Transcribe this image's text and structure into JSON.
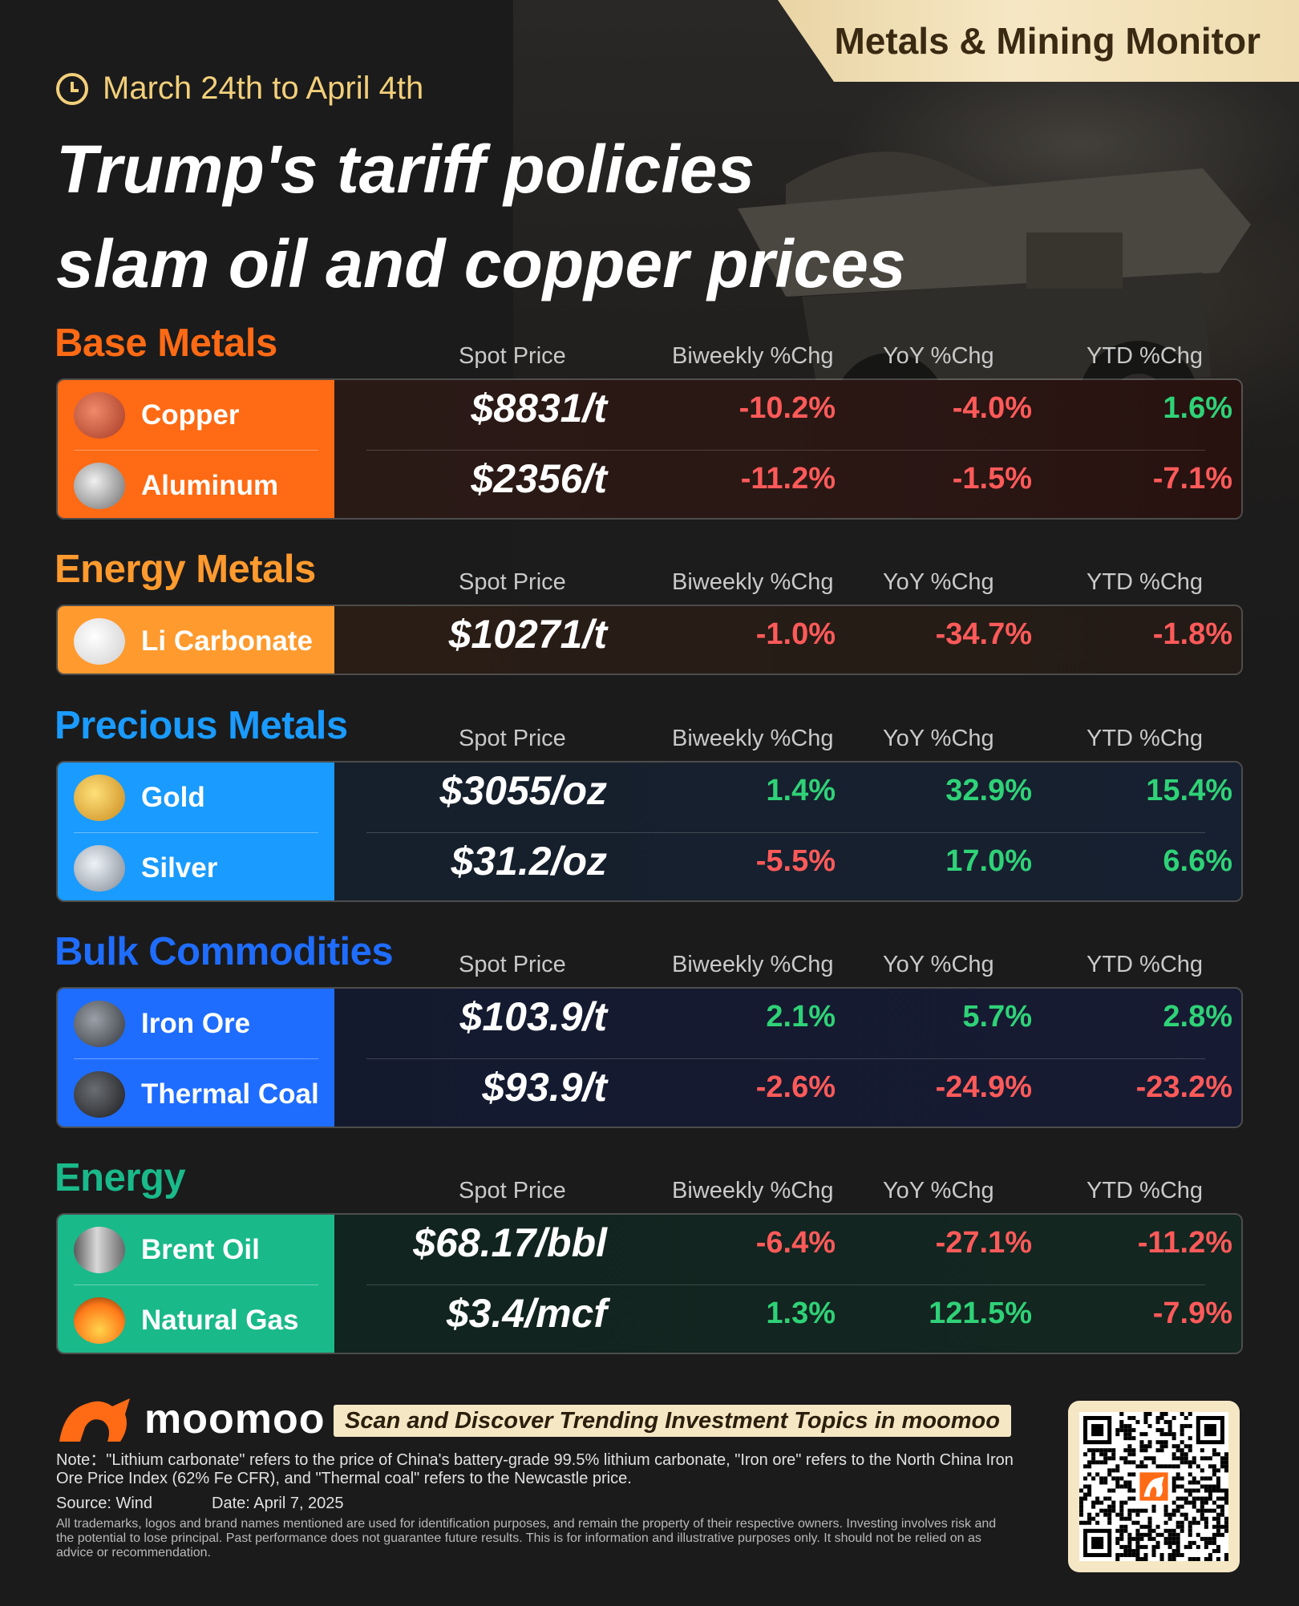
{
  "banner": "Metals & Mining Monitor",
  "date_range": "March 24th to April 4th",
  "headline_line1": "Trump's tariff policies",
  "headline_line2": "slam oil and copper prices",
  "columns": {
    "spot": "Spot Price",
    "biweekly": "Biweekly %Chg",
    "yoy": "YoY  %Chg",
    "ytd": "YTD %Chg"
  },
  "sections": [
    {
      "title": "Base Metals",
      "color": "#ff6a14",
      "rows": [
        {
          "name": "Copper",
          "price": "$8831/t",
          "biweekly": "-10.2%",
          "yoy": "-4.0%",
          "ytd": "1.6%",
          "icon": "copper-icon"
        },
        {
          "name": "Aluminum",
          "price": "$2356/t",
          "biweekly": "-11.2%",
          "yoy": "-1.5%",
          "ytd": "-7.1%",
          "icon": "aluminum-icon"
        }
      ]
    },
    {
      "title": "Energy Metals",
      "color": "#ff9a2e",
      "rows": [
        {
          "name": "Li Carbonate",
          "price": "$10271/t",
          "biweekly": "-1.0%",
          "yoy": "-34.7%",
          "ytd": "-1.8%",
          "icon": "lithium-icon"
        }
      ]
    },
    {
      "title": "Precious Metals",
      "color": "#1a9bff",
      "rows": [
        {
          "name": "Gold",
          "price": "$3055/oz",
          "biweekly": "1.4%",
          "yoy": "32.9%",
          "ytd": "15.4%",
          "icon": "gold-icon"
        },
        {
          "name": "Silver",
          "price": "$31.2/oz",
          "biweekly": "-5.5%",
          "yoy": "17.0%",
          "ytd": "6.6%",
          "icon": "silver-icon"
        }
      ]
    },
    {
      "title": "Bulk Commodities",
      "color": "#1f6dff",
      "rows": [
        {
          "name": "Iron Ore",
          "price": "$103.9/t",
          "biweekly": "2.1%",
          "yoy": "5.7%",
          "ytd": "2.8%",
          "icon": "iron-ore-icon"
        },
        {
          "name": "Thermal Coal",
          "price": "$93.9/t",
          "biweekly": "-2.6%",
          "yoy": "-24.9%",
          "ytd": "-23.2%",
          "icon": "coal-icon"
        }
      ]
    },
    {
      "title": "Energy",
      "color": "#1ab98a",
      "rows": [
        {
          "name": "Brent Oil",
          "price": "$68.17/bbl",
          "biweekly": "-6.4%",
          "yoy": "-27.1%",
          "ytd": "-11.2%",
          "icon": "oil-barrel-icon"
        },
        {
          "name": "Natural Gas",
          "price": "$3.4/mcf",
          "biweekly": "1.3%",
          "yoy": "121.5%",
          "ytd": "-7.9%",
          "icon": "gas-flame-icon"
        }
      ]
    }
  ],
  "watermark": "moomoo",
  "footer": {
    "logo": "moomoo",
    "scan_text": "Scan and Discover Trending Investment Topics in moomoo",
    "note": "Note：\"Lithium carbonate\" refers to the price of China's battery-grade 99.5% lithium carbonate, \"Iron ore\" refers to the North China Iron Ore Price Index (62% Fe CFR), and \"Thermal coal\" refers to the Newcastle price.",
    "source": "Source: Wind",
    "date": "Date: April 7, 2025",
    "disclaimer": "All trademarks, logos and brand names mentioned are used for identification purposes, and remain the property of their respective owners. Investing involves risk and the potential to lose principal. Past performance does not guarantee future results. This is for information and illustrative purposes only. It should not be relied on as advice or recommendation."
  }
}
